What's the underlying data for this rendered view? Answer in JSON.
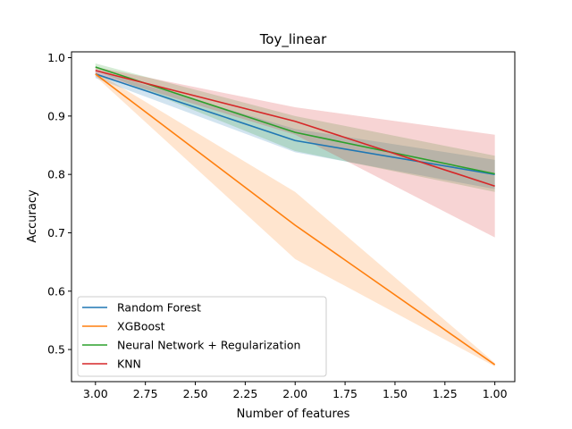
{
  "chart_data": {
    "type": "line",
    "title": "Toy_linear",
    "xlabel": "Number of features",
    "ylabel": "Accuracy",
    "x": [
      3.0,
      2.0,
      1.0
    ],
    "xlim": [
      3.12,
      0.9
    ],
    "ylim": [
      0.445,
      1.01
    ],
    "x_ticks": [
      3.0,
      2.75,
      2.5,
      2.25,
      2.0,
      1.75,
      1.5,
      1.25,
      1.0
    ],
    "x_tick_labels": [
      "3.00",
      "2.75",
      "2.50",
      "2.25",
      "2.00",
      "1.75",
      "1.50",
      "1.25",
      "1.00"
    ],
    "y_ticks": [
      0.5,
      0.6,
      0.7,
      0.8,
      0.9,
      1.0
    ],
    "y_tick_labels": [
      "0.5",
      "0.6",
      "0.7",
      "0.8",
      "0.9",
      "1.0"
    ],
    "grid": false,
    "legend_position": "lower-left",
    "series": [
      {
        "name": "Random Forest",
        "color": "#1f77b4",
        "values": [
          0.972,
          0.858,
          0.8
        ],
        "lower": [
          0.965,
          0.838,
          0.775
        ],
        "upper": [
          0.978,
          0.878,
          0.825
        ]
      },
      {
        "name": "XGBoost",
        "color": "#ff7f0e",
        "values": [
          0.972,
          0.713,
          0.474
        ],
        "lower": [
          0.968,
          0.655,
          0.471
        ],
        "upper": [
          0.976,
          0.77,
          0.477
        ]
      },
      {
        "name": "Neural Network + Regularization",
        "color": "#2ca02c",
        "values": [
          0.984,
          0.872,
          0.801
        ],
        "lower": [
          0.978,
          0.84,
          0.77
        ],
        "upper": [
          0.99,
          0.9,
          0.832
        ]
      },
      {
        "name": "KNN",
        "color": "#d62728",
        "values": [
          0.978,
          0.891,
          0.78
        ],
        "lower": [
          0.972,
          0.868,
          0.692
        ],
        "upper": [
          0.984,
          0.915,
          0.868
        ]
      }
    ]
  }
}
